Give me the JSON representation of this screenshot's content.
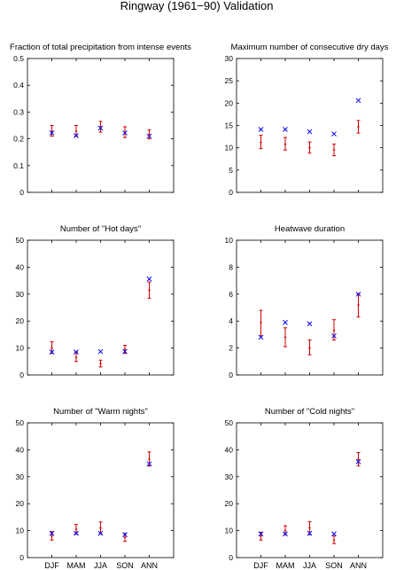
{
  "figure": {
    "title": "Ringway (1961−90) Validation"
  },
  "legend_colors": {
    "observed": "#cc0000",
    "modelled": "#0000ee",
    "axis": "#000000"
  },
  "chart_data": [
    {
      "type": "scatter",
      "title": "Fraction of total precipitation from intense events",
      "categories": [
        "DJF",
        "MAM",
        "JJA",
        "SON",
        "ANN"
      ],
      "show_xticklabels": false,
      "ylim": [
        0,
        0.5
      ],
      "yticks": [
        0,
        0.1,
        0.2,
        0.3,
        0.4,
        0.5
      ],
      "yticklabels": [
        "0",
        "0.1",
        "0.2",
        "0.3",
        "0.4",
        "0.5"
      ],
      "series": [
        {
          "marker": "errorbar",
          "color": "#cc0000",
          "center": [
            0.228,
            0.228,
            0.245,
            0.225,
            0.215
          ],
          "low": [
            0.21,
            0.21,
            0.225,
            0.205,
            0.2
          ],
          "high": [
            0.25,
            0.25,
            0.265,
            0.245,
            0.233
          ]
        },
        {
          "marker": "x",
          "color": "#0000ee",
          "values": [
            0.222,
            0.212,
            0.24,
            0.222,
            0.21
          ]
        }
      ]
    },
    {
      "type": "scatter",
      "title": "Maximum number of consecutive dry days",
      "categories": [
        "DJF",
        "MAM",
        "JJA",
        "SON",
        "ANN"
      ],
      "show_xticklabels": false,
      "ylim": [
        0,
        30
      ],
      "yticks": [
        0,
        5,
        10,
        15,
        20,
        25,
        30
      ],
      "yticklabels": [
        "0",
        "5",
        "10",
        "15",
        "20",
        "25",
        "30"
      ],
      "series": [
        {
          "marker": "errorbar",
          "color": "#cc0000",
          "center": [
            11.2,
            10.8,
            10.0,
            9.5,
            14.7
          ],
          "low": [
            9.8,
            9.5,
            8.8,
            8.2,
            13.3
          ],
          "high": [
            12.8,
            12.3,
            11.3,
            10.8,
            16.1
          ]
        },
        {
          "marker": "x",
          "color": "#0000ee",
          "values": [
            14.1,
            14.1,
            13.6,
            13.1,
            20.6
          ]
        }
      ]
    },
    {
      "type": "scatter",
      "title": "Number of \"Hot days\"",
      "categories": [
        "DJF",
        "MAM",
        "JJA",
        "SON",
        "ANN"
      ],
      "show_xticklabels": false,
      "ylim": [
        0,
        50
      ],
      "yticks": [
        0,
        10,
        20,
        30,
        40,
        50
      ],
      "yticklabels": [
        "0",
        "10",
        "20",
        "30",
        "40",
        "50"
      ],
      "series": [
        {
          "marker": "errorbar",
          "color": "#cc0000",
          "center": [
            10.0,
            6.5,
            4.2,
            9.5,
            31.5
          ],
          "low": [
            8.0,
            5.0,
            3.0,
            8.0,
            28.5
          ],
          "high": [
            12.3,
            8.5,
            5.5,
            11.0,
            34.5
          ]
        },
        {
          "marker": "x",
          "color": "#0000ee",
          "values": [
            8.5,
            8.5,
            8.7,
            8.7,
            35.6
          ]
        }
      ]
    },
    {
      "type": "scatter",
      "title": "Heatwave duration",
      "categories": [
        "DJF",
        "MAM",
        "JJA",
        "SON",
        "ANN"
      ],
      "show_xticklabels": false,
      "ylim": [
        0,
        10
      ],
      "yticks": [
        0,
        2,
        4,
        6,
        8,
        10
      ],
      "yticklabels": [
        "0",
        "2",
        "4",
        "6",
        "8",
        "10"
      ],
      "series": [
        {
          "marker": "errorbar",
          "color": "#cc0000",
          "center": [
            3.9,
            2.8,
            2.0,
            3.3,
            5.2
          ],
          "low": [
            2.9,
            2.1,
            1.5,
            2.6,
            4.3
          ],
          "high": [
            4.8,
            3.5,
            2.6,
            4.1,
            6.0
          ]
        },
        {
          "marker": "x",
          "color": "#0000ee",
          "values": [
            2.8,
            3.9,
            3.8,
            2.9,
            6.0
          ]
        }
      ]
    },
    {
      "type": "scatter",
      "title": "Number of \"Warm nights\"",
      "categories": [
        "DJF",
        "MAM",
        "JJA",
        "SON",
        "ANN"
      ],
      "show_xticklabels": true,
      "ylim": [
        0,
        50
      ],
      "yticks": [
        0,
        10,
        20,
        30,
        40,
        50
      ],
      "yticklabels": [
        "0",
        "10",
        "20",
        "30",
        "40",
        "50"
      ],
      "series": [
        {
          "marker": "errorbar",
          "color": "#cc0000",
          "center": [
            8.0,
            10.5,
            11.0,
            7.5,
            36.5
          ],
          "low": [
            6.5,
            8.8,
            8.8,
            6.0,
            34.0
          ],
          "high": [
            9.6,
            12.3,
            13.2,
            9.0,
            39.2
          ]
        },
        {
          "marker": "x",
          "color": "#0000ee",
          "values": [
            9.0,
            9.0,
            9.0,
            8.5,
            34.8
          ]
        }
      ]
    },
    {
      "type": "scatter",
      "title": "Number of \"Cold nights\"",
      "categories": [
        "DJF",
        "MAM",
        "JJA",
        "SON",
        "ANN"
      ],
      "show_xticklabels": true,
      "ylim": [
        0,
        50
      ],
      "yticks": [
        0,
        10,
        20,
        30,
        40,
        50
      ],
      "yticklabels": [
        "0",
        "10",
        "20",
        "30",
        "40",
        "50"
      ],
      "series": [
        {
          "marker": "errorbar",
          "color": "#cc0000",
          "center": [
            8.0,
            10.0,
            11.0,
            6.5,
            36.5
          ],
          "low": [
            6.5,
            8.5,
            8.5,
            5.2,
            34.0
          ],
          "high": [
            9.4,
            11.8,
            13.3,
            8.0,
            39.0
          ]
        },
        {
          "marker": "x",
          "color": "#0000ee",
          "values": [
            8.8,
            8.8,
            9.0,
            8.8,
            35.6
          ]
        }
      ]
    }
  ]
}
